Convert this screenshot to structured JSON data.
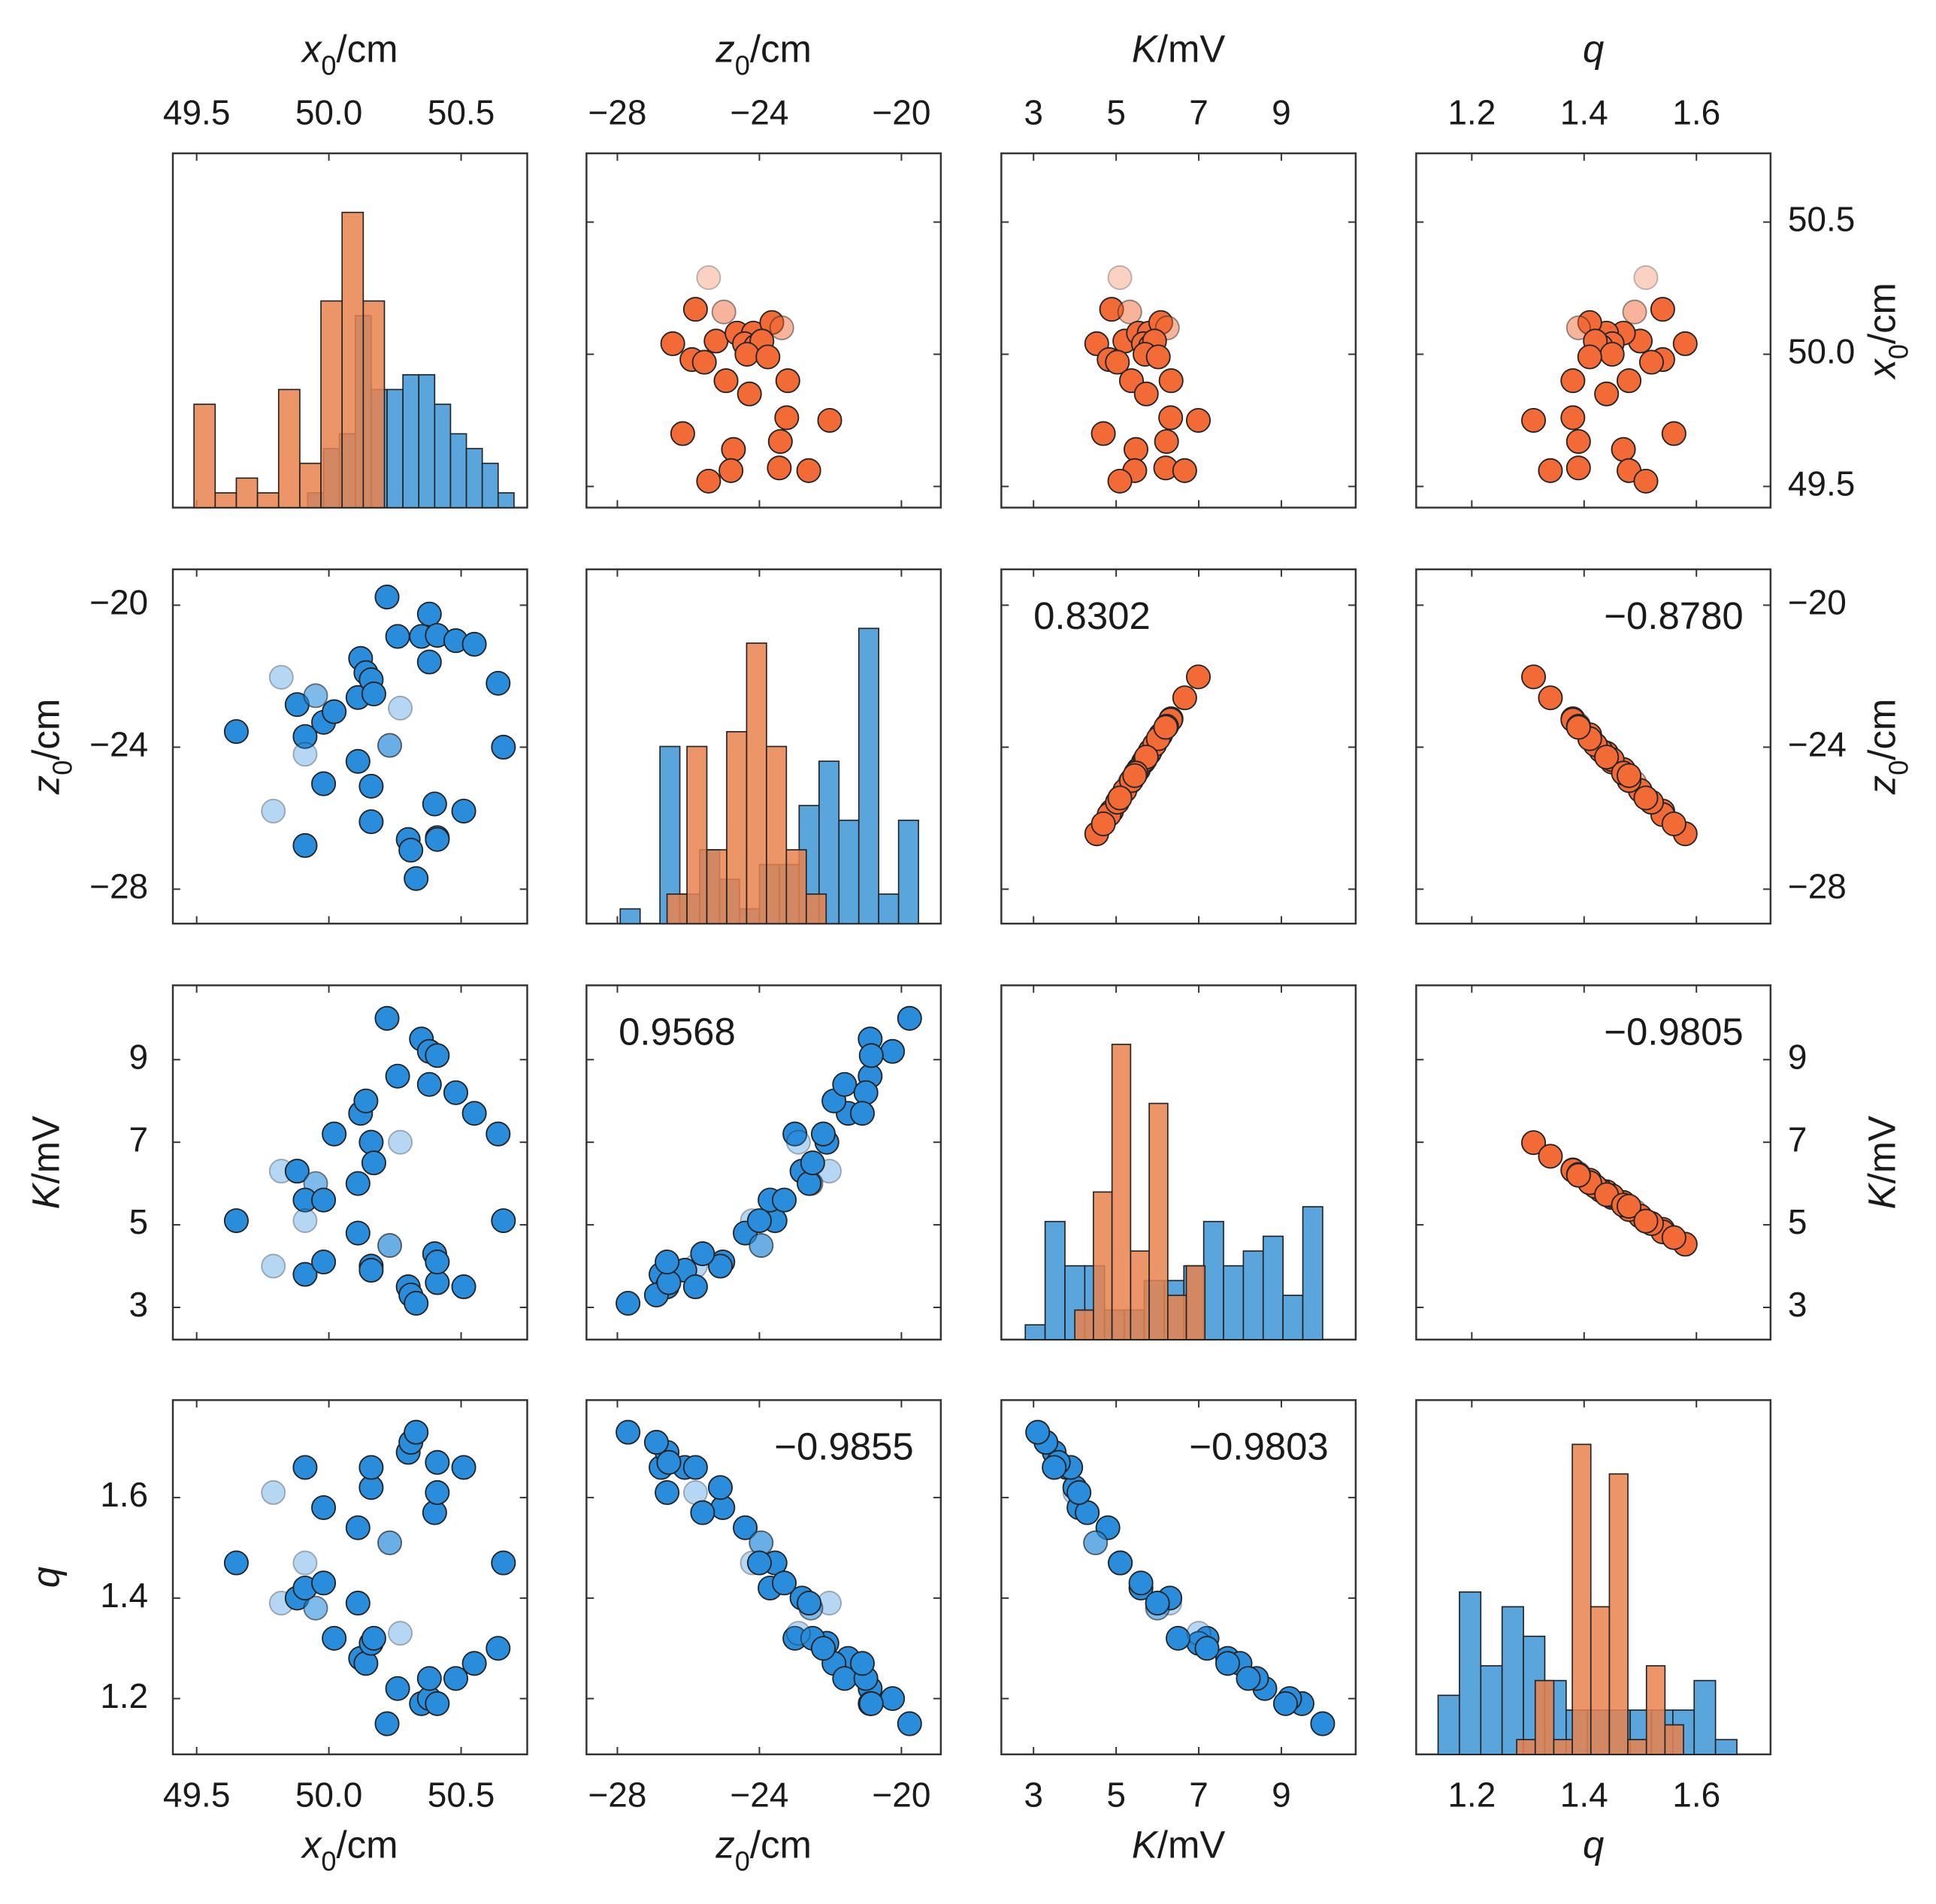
{
  "chart_data": {
    "type": "scatter_matrix",
    "variables": [
      {
        "symbol": "x",
        "subscript": "0",
        "unit": "/cm",
        "xlim": [
          49.41,
          50.75
        ],
        "xticks": [
          49.5,
          {
            "value": 50,
            "label": "50.0"
          },
          50.5
        ],
        "ylim": [
          49.42,
          50.76
        ],
        "yticks": [
          49.5,
          {
            "value": 50,
            "label": "50.0"
          },
          50.5
        ],
        "count_lim": [
          0,
          24
        ]
      },
      {
        "symbol": "z",
        "subscript": "0",
        "unit": "/cm",
        "xlim": [
          -28.87,
          -18.89
        ],
        "xticks": [
          {
            "value": -28,
            "label": "−28"
          },
          {
            "value": -24,
            "label": "−24"
          },
          {
            "value": -20,
            "label": "−20"
          }
        ],
        "ylim": [
          -28.97,
          -18.99
        ],
        "yticks": [
          {
            "value": -28,
            "label": "−28"
          },
          {
            "value": -24,
            "label": "−24"
          },
          {
            "value": -20,
            "label": "−20"
          }
        ],
        "count_lim": [
          0,
          24
        ]
      },
      {
        "symbol": "K",
        "unit": "/mV",
        "xlim": [
          2.22,
          10.8
        ],
        "xticks": [
          3,
          5,
          7,
          9
        ],
        "ylim": [
          2.22,
          10.8
        ],
        "yticks": [
          3,
          5,
          7,
          9
        ],
        "count_lim": [
          0,
          24
        ]
      },
      {
        "symbol": "q",
        "xlim": [
          1.101,
          1.732
        ],
        "xticks": [
          1.2,
          1.4,
          1.6
        ],
        "ylim": [
          1.089,
          1.794
        ],
        "yticks": [
          1.2,
          1.4,
          1.6
        ],
        "count_lim": [
          0,
          24
        ]
      }
    ],
    "series": [
      {
        "color": "#2a8ddc",
        "hist_color": "#5aa5db",
        "triangle": "lower",
        "values": [
          [
            49.65,
            -23.56,
            5.1,
            1.47
          ],
          [
            49.82,
            -22.03,
            6.3,
            1.39
          ],
          [
            49.88,
            -22.8,
            6.3,
            1.4
          ],
          [
            49.95,
            -22.55,
            6.0,
            1.38
          ],
          [
            49.91,
            -23.7,
            5.6,
            1.42
          ],
          [
            49.91,
            -24.2,
            5.1,
            1.47
          ],
          [
            49.79,
            -25.8,
            4.0,
            1.61
          ],
          [
            49.91,
            -26.77,
            3.8,
            1.66
          ],
          [
            49.98,
            -25.03,
            4.1,
            1.58
          ],
          [
            49.98,
            -23.3,
            5.6,
            1.43
          ],
          [
            50.02,
            -23.0,
            7.2,
            1.32
          ],
          [
            50.11,
            -22.6,
            6.0,
            1.39
          ],
          [
            50.12,
            -21.5,
            7.7,
            1.28
          ],
          [
            50.14,
            -21.9,
            8.0,
            1.27
          ],
          [
            50.16,
            -22.1,
            7.0,
            1.31
          ],
          [
            50.17,
            -22.5,
            6.5,
            1.32
          ],
          [
            50.11,
            -24.4,
            4.8,
            1.54
          ],
          [
            50.16,
            -25.1,
            4.0,
            1.62
          ],
          [
            50.16,
            -26.1,
            3.9,
            1.66
          ],
          [
            50.22,
            -19.77,
            10.0,
            1.15
          ],
          [
            50.26,
            -20.88,
            8.6,
            1.22
          ],
          [
            50.23,
            -23.95,
            4.5,
            1.51
          ],
          [
            50.27,
            -22.9,
            7.0,
            1.33
          ],
          [
            50.3,
            -26.6,
            3.5,
            1.69
          ],
          [
            50.31,
            -26.9,
            3.3,
            1.71
          ],
          [
            50.33,
            -27.7,
            3.1,
            1.73
          ],
          [
            50.35,
            -20.88,
            9.5,
            1.19
          ],
          [
            50.38,
            -20.25,
            9.2,
            1.2
          ],
          [
            50.38,
            -21.6,
            8.4,
            1.24
          ],
          [
            50.4,
            -25.6,
            4.3,
            1.57
          ],
          [
            50.41,
            -20.85,
            9.1,
            1.19
          ],
          [
            50.41,
            -26.55,
            3.6,
            1.67
          ],
          [
            50.41,
            -26.6,
            4.1,
            1.61
          ],
          [
            50.48,
            -21.0,
            8.2,
            1.24
          ],
          [
            50.55,
            -21.1,
            7.7,
            1.27
          ],
          [
            50.51,
            -25.8,
            3.5,
            1.66
          ],
          [
            50.64,
            -22.2,
            7.2,
            1.3
          ],
          [
            50.66,
            -24.0,
            5.1,
            1.47
          ]
        ],
        "alpha": [
          1,
          0.35,
          1,
          0.6,
          1,
          0.35,
          0.35,
          1,
          1,
          1,
          1,
          1,
          1,
          1,
          1,
          1,
          1,
          1,
          1,
          1,
          1,
          0.7,
          0.35,
          1,
          1,
          1,
          1,
          1,
          1,
          1,
          1,
          1,
          1,
          1,
          1,
          1,
          1,
          1
        ],
        "hist": [
          {
            "bins": [
              49.92,
              49.98,
              50.04,
              50.1,
              50.16,
              50.22,
              50.28,
              50.34,
              50.4,
              50.46,
              50.52,
              50.58,
              50.64,
              50.7
            ],
            "counts": [
              1,
              4,
              5,
              13,
              8,
              8,
              9,
              9,
              7,
              5,
              4,
              3,
              1
            ]
          },
          {
            "bins": [
              -27.92,
              -27.36,
              -26.8,
              -26.24,
              -25.68,
              -25.12,
              -24.56,
              -24.0,
              -23.44,
              -22.88,
              -22.32,
              -21.76,
              -21.2,
              -20.64,
              -20.08,
              -19.52
            ],
            "counts": [
              1,
              0,
              12,
              2,
              5,
              3,
              1,
              4,
              4,
              8,
              11,
              7,
              20,
              2,
              7
            ]
          },
          {
            "bins": [
              2.8,
              3.28,
              3.76,
              4.24,
              4.72,
              5.2,
              5.68,
              6.16,
              6.64,
              7.12,
              7.6,
              8.08,
              8.56,
              9.04,
              9.52,
              10.0
            ],
            "counts": [
              1,
              8,
              5,
              5,
              2,
              2,
              4,
              4,
              5,
              8,
              5,
              6,
              7,
              3,
              9
            ]
          },
          {
            "bins": [
              1.14,
              1.178,
              1.216,
              1.254,
              1.292,
              1.33,
              1.368,
              1.406,
              1.444,
              1.482,
              1.52,
              1.558,
              1.596,
              1.634,
              1.672
            ],
            "counts": [
              4,
              11,
              6,
              10,
              8,
              5,
              3,
              3,
              3,
              3,
              3,
              3,
              5,
              1
            ]
          }
        ]
      },
      {
        "color": "#f26a36",
        "hist_color": "#e9834f",
        "triangle": "upper",
        "values": [
          [
            50.29,
            -25.43,
            5.09,
            1.51
          ],
          [
            50.17,
            -25.8,
            4.89,
            1.54
          ],
          [
            50.16,
            -25.0,
            5.33,
            1.49
          ],
          [
            50.04,
            -26.44,
            4.53,
            1.58
          ],
          [
            50.05,
            -25.22,
            5.21,
            1.5
          ],
          [
            50.08,
            -24.63,
            5.54,
            1.47
          ],
          [
            50.08,
            -24.17,
            5.8,
            1.44
          ],
          [
            50.12,
            -23.65,
            6.08,
            1.41
          ],
          [
            50.1,
            -23.37,
            6.24,
            1.39
          ],
          [
            50.04,
            -24.42,
            5.66,
            1.45
          ],
          [
            50.03,
            -24.1,
            5.83,
            1.43
          ],
          [
            50.05,
            -23.93,
            5.93,
            1.42
          ],
          [
            50.0,
            -24.35,
            5.7,
            1.45
          ],
          [
            49.99,
            -23.76,
            6.02,
            1.41
          ],
          [
            49.98,
            -25.9,
            4.83,
            1.54
          ],
          [
            49.97,
            -25.55,
            5.03,
            1.52
          ],
          [
            49.9,
            -24.94,
            5.37,
            1.48
          ],
          [
            49.9,
            -23.2,
            6.33,
            1.38
          ],
          [
            49.85,
            -24.28,
            5.73,
            1.44
          ],
          [
            49.76,
            -23.23,
            6.32,
            1.38
          ],
          [
            49.75,
            -22.02,
            6.99,
            1.31
          ],
          [
            49.7,
            -26.16,
            4.69,
            1.56
          ],
          [
            49.64,
            -24.73,
            5.48,
            1.47
          ],
          [
            49.67,
            -23.41,
            6.22,
            1.39
          ],
          [
            49.56,
            -24.8,
            5.45,
            1.48
          ],
          [
            49.57,
            -23.44,
            6.2,
            1.39
          ],
          [
            49.52,
            -25.43,
            5.09,
            1.51
          ],
          [
            49.56,
            -22.61,
            6.66,
            1.34
          ]
        ],
        "alpha": [
          0.3,
          1,
          0.5,
          1,
          1,
          1,
          1,
          1,
          0.5,
          1,
          1,
          1,
          1,
          1,
          1,
          1,
          1,
          1,
          1,
          1,
          1,
          1,
          1,
          1,
          1,
          1,
          1,
          1
        ],
        "hist": [
          {
            "bins": [
              49.49,
              49.57,
              49.65,
              49.73,
              49.81,
              49.89,
              49.97,
              50.05,
              50.13,
              50.21
            ],
            "counts": [
              7,
              1,
              2,
              1,
              8,
              3,
              14,
              20,
              14
            ]
          },
          {
            "bins": [
              -26.6,
              -26.04,
              -25.48,
              -24.92,
              -24.36,
              -23.8,
              -23.24,
              -22.68,
              -22.12
            ],
            "counts": [
              2,
              12,
              5,
              13,
              19,
              12,
              5,
              2
            ]
          },
          {
            "bins": [
              4.0,
              4.45,
              4.9,
              5.35,
              5.8,
              6.25,
              6.7,
              7.15
            ],
            "counts": [
              2,
              10,
              20,
              6,
              16,
              3,
              5
            ]
          },
          {
            "bins": [
              1.28,
              1.313,
              1.346,
              1.379,
              1.412,
              1.445,
              1.478,
              1.511,
              1.544,
              1.577
            ],
            "counts": [
              1,
              5,
              1,
              21,
              10,
              19,
              1,
              6,
              2
            ]
          }
        ]
      }
    ],
    "annotations": [
      {
        "x_var": 2,
        "y_var": 1,
        "text": "0.8302"
      },
      {
        "x_var": 3,
        "y_var": 1,
        "text": "−0.8780"
      },
      {
        "x_var": 1,
        "y_var": 2,
        "text": "0.9568"
      },
      {
        "x_var": 3,
        "y_var": 2,
        "text": "−0.9805"
      },
      {
        "x_var": 1,
        "y_var": 3,
        "text": "−0.9855"
      },
      {
        "x_var": 2,
        "y_var": 3,
        "text": "−0.9803"
      }
    ]
  }
}
